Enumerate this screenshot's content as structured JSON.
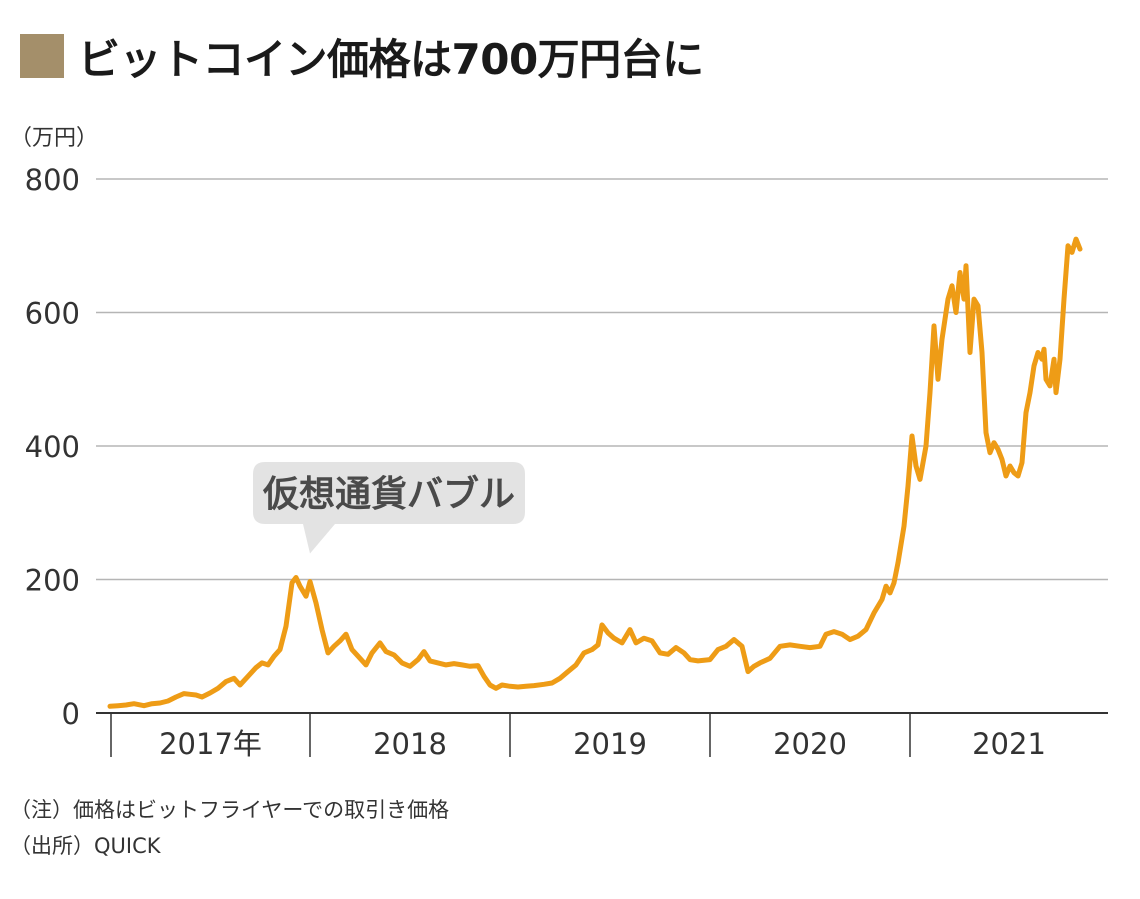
{
  "title": "ビットコイン価格は700万円台に",
  "unit_label": "（万円）",
  "notes": {
    "note": "（注）価格はビットフライヤーでの取引き価格",
    "source": "（出所）QUICK"
  },
  "colors": {
    "accent_square": "#a48f6a",
    "line": "#ee9c16",
    "grid": "#b5b5b5",
    "callout_bg": "#e3e3e3"
  },
  "chart_data": {
    "type": "line",
    "title": "ビットコイン価格は700万円台に",
    "ylabel": "（万円）",
    "ylim": [
      0,
      800
    ],
    "yticks": [
      0,
      200,
      400,
      600,
      800
    ],
    "year_labels": [
      "2017年",
      "2018",
      "2019",
      "2020",
      "2021"
    ],
    "x_range": [
      2017.0,
      2021.9
    ],
    "grid": true,
    "annotation": {
      "text": "仮想通貨バブル",
      "x": 2017.95,
      "y": 203
    },
    "series": [
      {
        "points": [
          [
            2017.0,
            10
          ],
          [
            2017.04,
            11
          ],
          [
            2017.08,
            12
          ],
          [
            2017.12,
            14
          ],
          [
            2017.17,
            11
          ],
          [
            2017.21,
            14
          ],
          [
            2017.25,
            15
          ],
          [
            2017.29,
            18
          ],
          [
            2017.33,
            24
          ],
          [
            2017.37,
            29
          ],
          [
            2017.4,
            28
          ],
          [
            2017.43,
            27
          ],
          [
            2017.46,
            24
          ],
          [
            2017.5,
            30
          ],
          [
            2017.54,
            37
          ],
          [
            2017.58,
            47
          ],
          [
            2017.62,
            52
          ],
          [
            2017.65,
            42
          ],
          [
            2017.69,
            55
          ],
          [
            2017.73,
            68
          ],
          [
            2017.76,
            75
          ],
          [
            2017.79,
            72
          ],
          [
            2017.82,
            85
          ],
          [
            2017.85,
            95
          ],
          [
            2017.88,
            130
          ],
          [
            2017.91,
            195
          ],
          [
            2017.93,
            203
          ],
          [
            2017.95,
            190
          ],
          [
            2017.98,
            175
          ],
          [
            2018.0,
            197
          ],
          [
            2018.03,
            165
          ],
          [
            2018.06,
            125
          ],
          [
            2018.09,
            90
          ],
          [
            2018.12,
            100
          ],
          [
            2018.15,
            108
          ],
          [
            2018.18,
            118
          ],
          [
            2018.21,
            95
          ],
          [
            2018.25,
            82
          ],
          [
            2018.28,
            72
          ],
          [
            2018.31,
            90
          ],
          [
            2018.35,
            105
          ],
          [
            2018.38,
            92
          ],
          [
            2018.42,
            87
          ],
          [
            2018.46,
            75
          ],
          [
            2018.5,
            70
          ],
          [
            2018.54,
            80
          ],
          [
            2018.57,
            92
          ],
          [
            2018.6,
            78
          ],
          [
            2018.64,
            75
          ],
          [
            2018.68,
            72
          ],
          [
            2018.72,
            74
          ],
          [
            2018.76,
            72
          ],
          [
            2018.8,
            70
          ],
          [
            2018.84,
            71
          ],
          [
            2018.87,
            55
          ],
          [
            2018.9,
            42
          ],
          [
            2018.93,
            37
          ],
          [
            2018.96,
            42
          ],
          [
            2019.0,
            40
          ],
          [
            2019.04,
            39
          ],
          [
            2019.08,
            40
          ],
          [
            2019.12,
            41
          ],
          [
            2019.17,
            43
          ],
          [
            2019.21,
            45
          ],
          [
            2019.25,
            52
          ],
          [
            2019.29,
            62
          ],
          [
            2019.33,
            72
          ],
          [
            2019.37,
            90
          ],
          [
            2019.41,
            95
          ],
          [
            2019.44,
            102
          ],
          [
            2019.46,
            132
          ],
          [
            2019.49,
            120
          ],
          [
            2019.52,
            112
          ],
          [
            2019.56,
            105
          ],
          [
            2019.6,
            125
          ],
          [
            2019.63,
            105
          ],
          [
            2019.67,
            112
          ],
          [
            2019.71,
            108
          ],
          [
            2019.75,
            90
          ],
          [
            2019.79,
            88
          ],
          [
            2019.83,
            98
          ],
          [
            2019.87,
            90
          ],
          [
            2019.9,
            80
          ],
          [
            2019.94,
            78
          ],
          [
            2020.0,
            80
          ],
          [
            2020.04,
            95
          ],
          [
            2020.08,
            100
          ],
          [
            2020.12,
            110
          ],
          [
            2020.16,
            100
          ],
          [
            2020.19,
            62
          ],
          [
            2020.22,
            70
          ],
          [
            2020.25,
            75
          ],
          [
            2020.3,
            82
          ],
          [
            2020.35,
            100
          ],
          [
            2020.4,
            102
          ],
          [
            2020.45,
            100
          ],
          [
            2020.5,
            98
          ],
          [
            2020.55,
            100
          ],
          [
            2020.58,
            118
          ],
          [
            2020.62,
            122
          ],
          [
            2020.66,
            118
          ],
          [
            2020.7,
            110
          ],
          [
            2020.74,
            115
          ],
          [
            2020.78,
            125
          ],
          [
            2020.82,
            150
          ],
          [
            2020.86,
            170
          ],
          [
            2020.88,
            190
          ],
          [
            2020.9,
            180
          ],
          [
            2020.92,
            195
          ],
          [
            2020.94,
            225
          ],
          [
            2020.97,
            280
          ],
          [
            2020.99,
            340
          ],
          [
            2021.01,
            415
          ],
          [
            2021.03,
            370
          ],
          [
            2021.05,
            350
          ],
          [
            2021.08,
            400
          ],
          [
            2021.1,
            480
          ],
          [
            2021.12,
            580
          ],
          [
            2021.14,
            500
          ],
          [
            2021.16,
            560
          ],
          [
            2021.19,
            620
          ],
          [
            2021.21,
            640
          ],
          [
            2021.23,
            600
          ],
          [
            2021.25,
            660
          ],
          [
            2021.27,
            620
          ],
          [
            2021.28,
            670
          ],
          [
            2021.3,
            540
          ],
          [
            2021.32,
            620
          ],
          [
            2021.34,
            610
          ],
          [
            2021.36,
            540
          ],
          [
            2021.38,
            420
          ],
          [
            2021.4,
            390
          ],
          [
            2021.42,
            405
          ],
          [
            2021.44,
            395
          ],
          [
            2021.46,
            380
          ],
          [
            2021.48,
            355
          ],
          [
            2021.5,
            370
          ],
          [
            2021.52,
            360
          ],
          [
            2021.54,
            355
          ],
          [
            2021.56,
            375
          ],
          [
            2021.58,
            450
          ],
          [
            2021.6,
            480
          ],
          [
            2021.62,
            520
          ],
          [
            2021.64,
            540
          ],
          [
            2021.66,
            530
          ],
          [
            2021.67,
            545
          ],
          [
            2021.68,
            500
          ],
          [
            2021.7,
            490
          ],
          [
            2021.72,
            530
          ],
          [
            2021.73,
            480
          ],
          [
            2021.75,
            530
          ],
          [
            2021.77,
            620
          ],
          [
            2021.79,
            700
          ],
          [
            2021.81,
            690
          ],
          [
            2021.83,
            710
          ],
          [
            2021.85,
            695
          ]
        ]
      }
    ]
  }
}
